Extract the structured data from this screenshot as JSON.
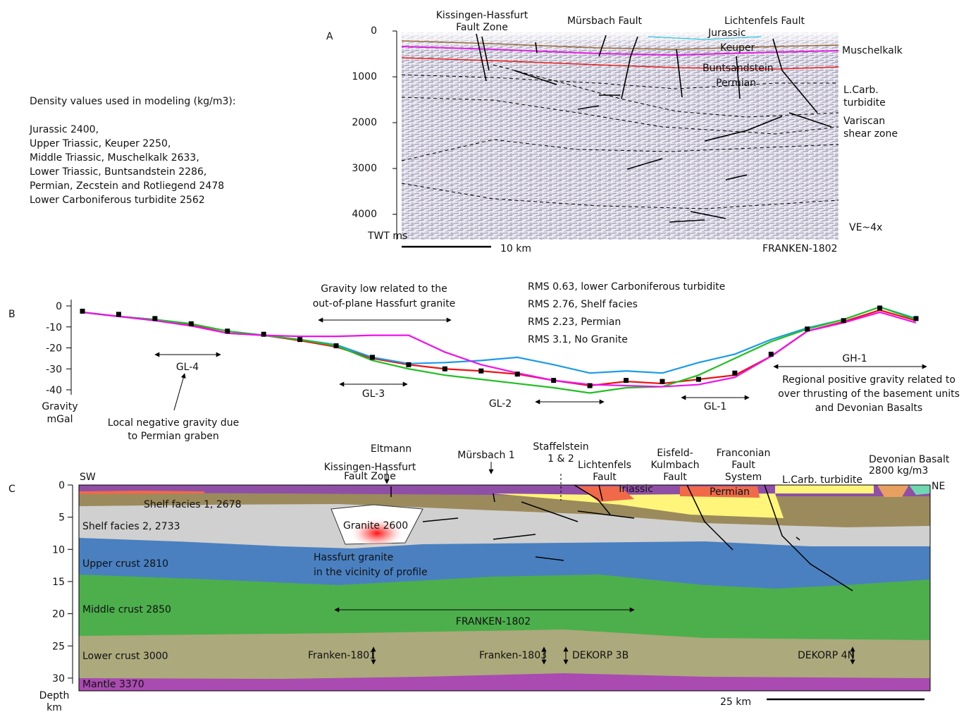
{
  "panel_a": {
    "letter": "A",
    "density_title": "Density values used in modeling (kg/m3):",
    "density_lines": [
      "Jurassic 2400,",
      "Upper Triassic, Keuper 2250,",
      "Middle Triassic, Muschelkalk 2633,",
      "Lower Triassic, Buntsandstein 2286,",
      "Permian, Zecstein and Rotliegend 2478",
      "Lower Carboniferous turbidite 2562"
    ],
    "yticks": [
      0,
      1000,
      2000,
      3000,
      4000
    ],
    "axis_label": "TWT ms",
    "scale_label": "10 km",
    "profile": "FRANKEN-1802",
    "ve": "VE~4x",
    "labels": {
      "kissingen": [
        "Kissingen-Hassfurt",
        "Fault Zone"
      ],
      "mursbach": "Mürsbach Fault",
      "lichtenfels": "Lichtenfels Fault",
      "jurassic": "Jurassic",
      "keuper": "Keuper",
      "muschelkalk": "Muschelkalk",
      "buntsandstein": "Buntsandstein",
      "permian": "Permian",
      "lcarb": [
        "L.Carb.",
        "turbidite"
      ],
      "variscan": [
        "Variscan",
        "shear zone"
      ]
    }
  },
  "chart_data": {
    "type": "line",
    "letter": "B",
    "y_label": [
      "Gravity",
      "mGal"
    ],
    "categories": [
      null,
      null,
      null,
      null,
      null,
      null,
      null,
      null,
      null,
      null,
      null,
      null,
      null,
      null,
      null,
      null,
      null,
      null,
      null,
      null,
      null,
      null,
      null,
      null
    ],
    "ylim": [
      -42,
      3
    ],
    "yticks": [
      0,
      -10,
      -20,
      -30,
      -40
    ],
    "observed": {
      "color": "#000000",
      "values": [
        -2.5,
        -4,
        -6,
        -8.5,
        -12,
        -13.5,
        -16,
        -19,
        -24.5,
        -28,
        -30,
        -31,
        -32.5,
        -35.5,
        -38,
        -35.5,
        -36,
        -35,
        -32,
        -23,
        -11,
        -7,
        -1,
        -6
      ]
    },
    "series": [
      {
        "name": "RMS 0.63, lower Carboniferous turbidite",
        "color": "#ee1111",
        "values": [
          -3,
          -5,
          -6.5,
          -9,
          -13,
          -14,
          -16.5,
          -19.5,
          -25,
          -28,
          -30,
          -31,
          -32.5,
          -35.5,
          -38,
          -36,
          -37,
          -35,
          -33,
          -24,
          -12,
          -7.5,
          -2,
          -7
        ]
      },
      {
        "name": "RMS 2.76, Shelf facies",
        "color": "#1a9be8",
        "values": [
          -3,
          -5,
          -6.5,
          -8.5,
          -12,
          -14,
          -16,
          -18.5,
          -24.5,
          -27.5,
          -27,
          -26,
          -24.5,
          -28,
          -32,
          -31,
          -32,
          -27,
          -23,
          -16,
          -10.5,
          -6.5,
          -0.5,
          -6
        ]
      },
      {
        "name": "RMS 2.23, Permian",
        "color": "#22c022",
        "values": [
          -3,
          -5,
          -6.5,
          -8.5,
          -12,
          -14,
          -16,
          -19,
          -26,
          -30,
          -33,
          -35,
          -37,
          -39,
          -41.5,
          -39,
          -38.5,
          -33,
          -25,
          -17,
          -11,
          -6.5,
          -0.5,
          -6.5
        ]
      },
      {
        "name": "RMS 3.1, No Granite",
        "color": "#ee11ee",
        "values": [
          -3,
          -5,
          -7,
          -9.5,
          -13,
          -14,
          -14.5,
          -14.5,
          -14,
          -14,
          -22,
          -28,
          -32,
          -35.5,
          -37.5,
          -38,
          -38.5,
          -37.5,
          -34,
          -24,
          -12,
          -8,
          -3,
          -8
        ]
      }
    ],
    "annotations": {
      "gravity_low": [
        "Gravity low related to the",
        "out-of-plane Hassfurt granite"
      ],
      "gl4": "GL-4",
      "gl3": "GL-3",
      "gl2": "GL-2",
      "gl1": "GL-1",
      "gh1": "GH-1",
      "regional": [
        "Regional positive gravity related to",
        "over thrusting of the basement units",
        "and Devonian Basalts"
      ],
      "local": [
        "Local negative gravity due",
        "to Permian graben"
      ]
    }
  },
  "panel_c": {
    "letter": "C",
    "yticks": [
      0,
      5,
      10,
      15,
      20,
      25,
      30
    ],
    "axis_label": [
      "Depth",
      "km"
    ],
    "sw": "SW",
    "ne": "NE",
    "layers": {
      "shelf1": "Shelf facies 1, 2678",
      "shelf2": "Shelf facies 2, 2733",
      "granite": "Granite 2600",
      "upper": "Upper crust 2810",
      "middle": "Middle crust 2850",
      "lower": "Lower crust 3000",
      "mantle": "Mantle 3370",
      "triassic": "Triassic",
      "permian": "Permian"
    },
    "hassfurt": [
      "Hassfurt granite",
      "in the vicinity of profile"
    ],
    "profile": "FRANKEN-1802",
    "crossings": [
      "Franken-1801",
      "Franken-1803",
      "DEKORP 3B",
      "DEKORP 4N"
    ],
    "scale_label": "25 km",
    "top_labels": {
      "eltmann": "Eltmann",
      "kissingen": [
        "Kissingen-Hassfurt",
        "Fault Zone"
      ],
      "mursbach": "Mürsbach 1",
      "staffelstein": [
        "Staffelstein",
        "1 & 2"
      ],
      "lichtenfels": [
        "Lichtenfels",
        "Fault"
      ],
      "eisfeld": [
        "Eisfeld-",
        "Kulmbach",
        "Fault"
      ],
      "franconian": [
        "Franconian",
        "Fault",
        "System"
      ],
      "lcarb": "L.Carb. turbidite",
      "devonian": [
        "Devonian Basalt",
        "2800 kg/m3"
      ]
    }
  }
}
